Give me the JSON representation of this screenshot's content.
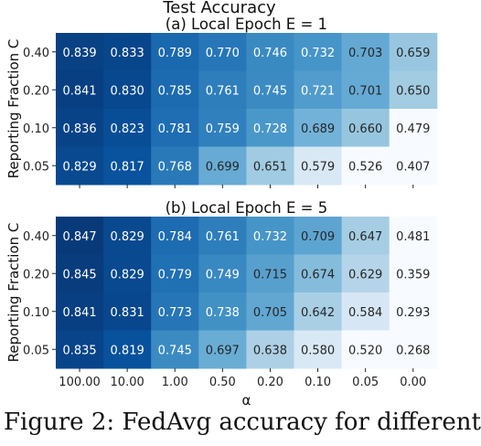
{
  "figure_title": "Test Accuracy",
  "caption_fragment": "Figure 2: FedAvg accuracy for different",
  "chart_data": [
    {
      "type": "heatmap",
      "title": "(a) Local Epoch E = 1",
      "ylabel": "Reporting Fraction C",
      "xlabel": "",
      "rows": [
        "0.40",
        "0.20",
        "0.10",
        "0.05"
      ],
      "cols": [
        "100.00",
        "10.00",
        "1.00",
        "0.50",
        "0.20",
        "0.10",
        "0.05",
        "0.00"
      ],
      "values": [
        [
          0.839,
          0.833,
          0.789,
          0.77,
          0.746,
          0.732,
          0.703,
          0.659
        ],
        [
          0.841,
          0.83,
          0.785,
          0.761,
          0.745,
          0.721,
          0.701,
          0.65
        ],
        [
          0.836,
          0.823,
          0.781,
          0.759,
          0.728,
          0.689,
          0.66,
          0.479
        ],
        [
          0.829,
          0.817,
          0.768,
          0.699,
          0.651,
          0.579,
          0.526,
          0.407
        ]
      ],
      "colormap": "Blues"
    },
    {
      "type": "heatmap",
      "title": "(b) Local Epoch E = 5",
      "ylabel": "Reporting Fraction C",
      "xlabel": "α",
      "rows": [
        "0.40",
        "0.20",
        "0.10",
        "0.05"
      ],
      "cols": [
        "100.00",
        "10.00",
        "1.00",
        "0.50",
        "0.20",
        "0.10",
        "0.05",
        "0.00"
      ],
      "values": [
        [
          0.847,
          0.829,
          0.784,
          0.761,
          0.732,
          0.709,
          0.647,
          0.481
        ],
        [
          0.845,
          0.829,
          0.779,
          0.749,
          0.715,
          0.674,
          0.629,
          0.359
        ],
        [
          0.841,
          0.831,
          0.773,
          0.738,
          0.705,
          0.642,
          0.584,
          0.293
        ],
        [
          0.835,
          0.819,
          0.745,
          0.697,
          0.638,
          0.58,
          0.52,
          0.268
        ]
      ],
      "colormap": "Blues"
    }
  ]
}
